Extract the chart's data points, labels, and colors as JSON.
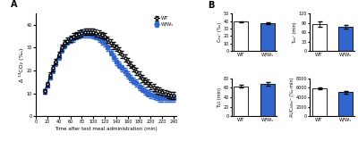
{
  "panel_A": {
    "time": [
      15,
      20,
      25,
      30,
      35,
      40,
      45,
      50,
      55,
      60,
      65,
      70,
      75,
      80,
      85,
      90,
      95,
      100,
      105,
      110,
      115,
      120,
      125,
      130,
      135,
      140,
      145,
      150,
      155,
      160,
      165,
      170,
      175,
      180,
      185,
      190,
      195,
      200,
      205,
      210,
      215,
      220,
      225,
      230,
      235,
      240
    ],
    "WT_mean": [
      11,
      14,
      18,
      21,
      24,
      27,
      30,
      32,
      33,
      34,
      35,
      35.5,
      36,
      36.5,
      37,
      37,
      37,
      37,
      36.5,
      36,
      35.5,
      35,
      33.5,
      32,
      31,
      30,
      28.5,
      27,
      25.5,
      24,
      22.5,
      21,
      19.5,
      18,
      16.5,
      15.5,
      14.5,
      13.5,
      12.5,
      11.5,
      11,
      10.5,
      10,
      9.5,
      9,
      9
    ],
    "WT_err": [
      1,
      1,
      1.2,
      1.2,
      1.2,
      1.2,
      1.3,
      1.3,
      1.3,
      1.3,
      1.5,
      1.5,
      1.5,
      1.5,
      1.5,
      1.5,
      1.5,
      1.5,
      1.5,
      1.5,
      1.5,
      1.5,
      1.5,
      1.5,
      1.5,
      1.5,
      1.5,
      1.5,
      1.5,
      1.5,
      1.5,
      1.5,
      1.5,
      1.5,
      1.5,
      1.5,
      1.5,
      1.5,
      1.5,
      1.5,
      1.5,
      1.5,
      1.5,
      1.5,
      1.5,
      1.5
    ],
    "WW_mean": [
      11,
      13.5,
      17,
      20,
      23,
      26,
      29,
      31,
      32.5,
      33.5,
      34,
      35,
      35.5,
      36,
      36,
      36,
      36,
      35.5,
      35,
      34,
      33,
      32,
      30,
      28,
      26,
      24,
      22.5,
      21,
      19.5,
      18,
      16.5,
      15.5,
      14.5,
      13,
      12,
      11,
      10,
      9.5,
      9,
      8.5,
      8,
      8,
      8,
      8,
      8,
      8
    ],
    "WW_err": [
      1,
      1,
      1,
      1,
      1.2,
      1.2,
      1.2,
      1.2,
      1.3,
      1.3,
      1.3,
      1.5,
      1.5,
      1.5,
      1.5,
      1.5,
      1.5,
      1.5,
      1.5,
      1.5,
      1.5,
      1.5,
      1.5,
      1.5,
      1.5,
      1.5,
      1.5,
      1.5,
      1.5,
      1.5,
      1.5,
      1.5,
      1.5,
      1.5,
      1.5,
      1.5,
      1.5,
      1.5,
      1.5,
      1.5,
      1.5,
      1.5,
      1.5,
      1.5,
      1.5,
      1.5
    ],
    "xlabel": "Time after test meal administration (min)",
    "ylabel": "Δ ¹³CO₂ (‰)",
    "xlim": [
      0,
      245
    ],
    "ylim": [
      0,
      45
    ],
    "xticks": [
      0,
      20,
      40,
      60,
      80,
      100,
      120,
      140,
      160,
      180,
      200,
      220,
      240
    ],
    "xtick_labels": [
      "0",
      "20",
      "40",
      "60",
      "80",
      "100",
      "120",
      "140",
      "160",
      "180",
      "200",
      "220",
      "240"
    ],
    "yticks": [
      0,
      10,
      20,
      30,
      40
    ]
  },
  "panel_B": {
    "Cmax": {
      "WT": 39.0,
      "WW": 37.0,
      "WT_err": 1.0,
      "WW_err": 1.0,
      "ylabel": "Cₘₐˣ (‰)",
      "ylim": [
        0,
        50
      ],
      "yticks": [
        0,
        10,
        20,
        30,
        40,
        50
      ]
    },
    "Tmax": {
      "WT": 87.0,
      "WW": 77.0,
      "WT_err": 8.0,
      "WW_err": 5.0,
      "ylabel": "Tₘₐˣ (min)",
      "ylim": [
        0,
        120
      ],
      "yticks": [
        0,
        30,
        60,
        90,
        120
      ]
    },
    "T12": {
      "WT": 63.0,
      "WW": 68.0,
      "WT_err": 3.0,
      "WW_err": 4.0,
      "ylabel": "T₁/₂ (min)",
      "ylim": [
        0,
        80
      ],
      "yticks": [
        0,
        20,
        40,
        60,
        80
      ]
    },
    "AUC": {
      "WT": 5900,
      "WW": 5100,
      "WT_err": 200,
      "WW_err": 250,
      "ylabel": "AUC₂₄₀ₘᴵⁿ (‰·min)",
      "ylim": [
        0,
        8000
      ],
      "yticks": [
        0,
        2000,
        4000,
        6000,
        8000
      ]
    }
  },
  "colors": {
    "WT_bar": "white",
    "WW_bar": "#3366cc",
    "edge": "black",
    "line_WT": "black",
    "line_WW": "#3366cc"
  },
  "WT_label": "WT",
  "WW_label": "W/Wᵥ"
}
